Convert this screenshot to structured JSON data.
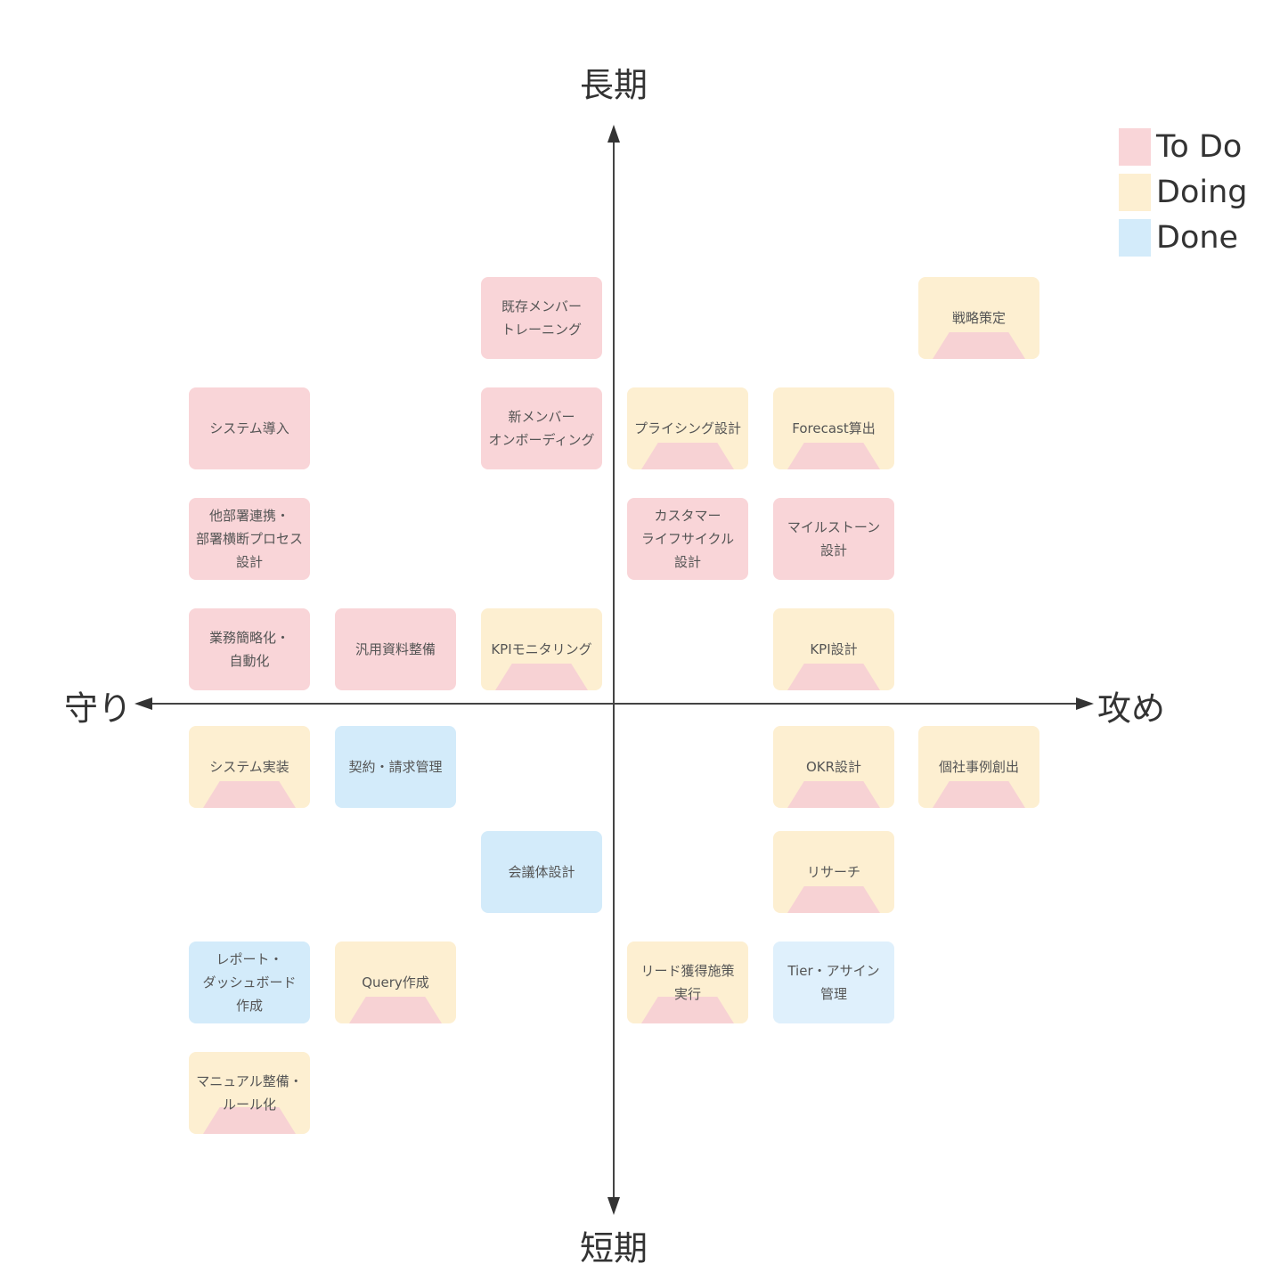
{
  "axes": {
    "top": "長期",
    "bottom": "短期",
    "left": "守り",
    "right": "攻め"
  },
  "legend": [
    {
      "label": "To Do",
      "color": "#f9d5d8"
    },
    {
      "label": "Doing",
      "color": "#fdefd1"
    },
    {
      "label": "Done",
      "color": "#d3ebfa"
    }
  ],
  "cards": [
    {
      "text": "既存メンバー\nトレーニング",
      "status": "todo"
    },
    {
      "text": "戦略策定",
      "status": "doing"
    },
    {
      "text": "システム導入",
      "status": "todo"
    },
    {
      "text": "新メンバー\nオンボーディング",
      "status": "todo"
    },
    {
      "text": "プライシング設計",
      "status": "doing"
    },
    {
      "text": "Forecast算出",
      "status": "doing"
    },
    {
      "text": "他部署連携・\n部署横断プロセス\n設計",
      "status": "todo"
    },
    {
      "text": "カスタマー\nライフサイクル\n設計",
      "status": "todo"
    },
    {
      "text": "マイルストーン\n設計",
      "status": "todo"
    },
    {
      "text": "業務簡略化・\n自動化",
      "status": "todo"
    },
    {
      "text": "汎用資料整備",
      "status": "todo"
    },
    {
      "text": "KPIモニタリング",
      "status": "doing"
    },
    {
      "text": "KPI設計",
      "status": "doing"
    },
    {
      "text": "システム実装",
      "status": "doing"
    },
    {
      "text": "契約・請求管理",
      "status": "done"
    },
    {
      "text": "OKR設計",
      "status": "doing"
    },
    {
      "text": "個社事例創出",
      "status": "doing"
    },
    {
      "text": "会議体設計",
      "status": "done"
    },
    {
      "text": "リサーチ",
      "status": "doing"
    },
    {
      "text": "レポート・\nダッシュボード\n作成",
      "status": "done"
    },
    {
      "text": "Query作成",
      "status": "doing"
    },
    {
      "text": "リード獲得施策\n実行",
      "status": "doing"
    },
    {
      "text": "Tier・アサイン\n管理",
      "status": "done"
    },
    {
      "text": "マニュアル整備・\nルール化",
      "status": "doing"
    }
  ]
}
